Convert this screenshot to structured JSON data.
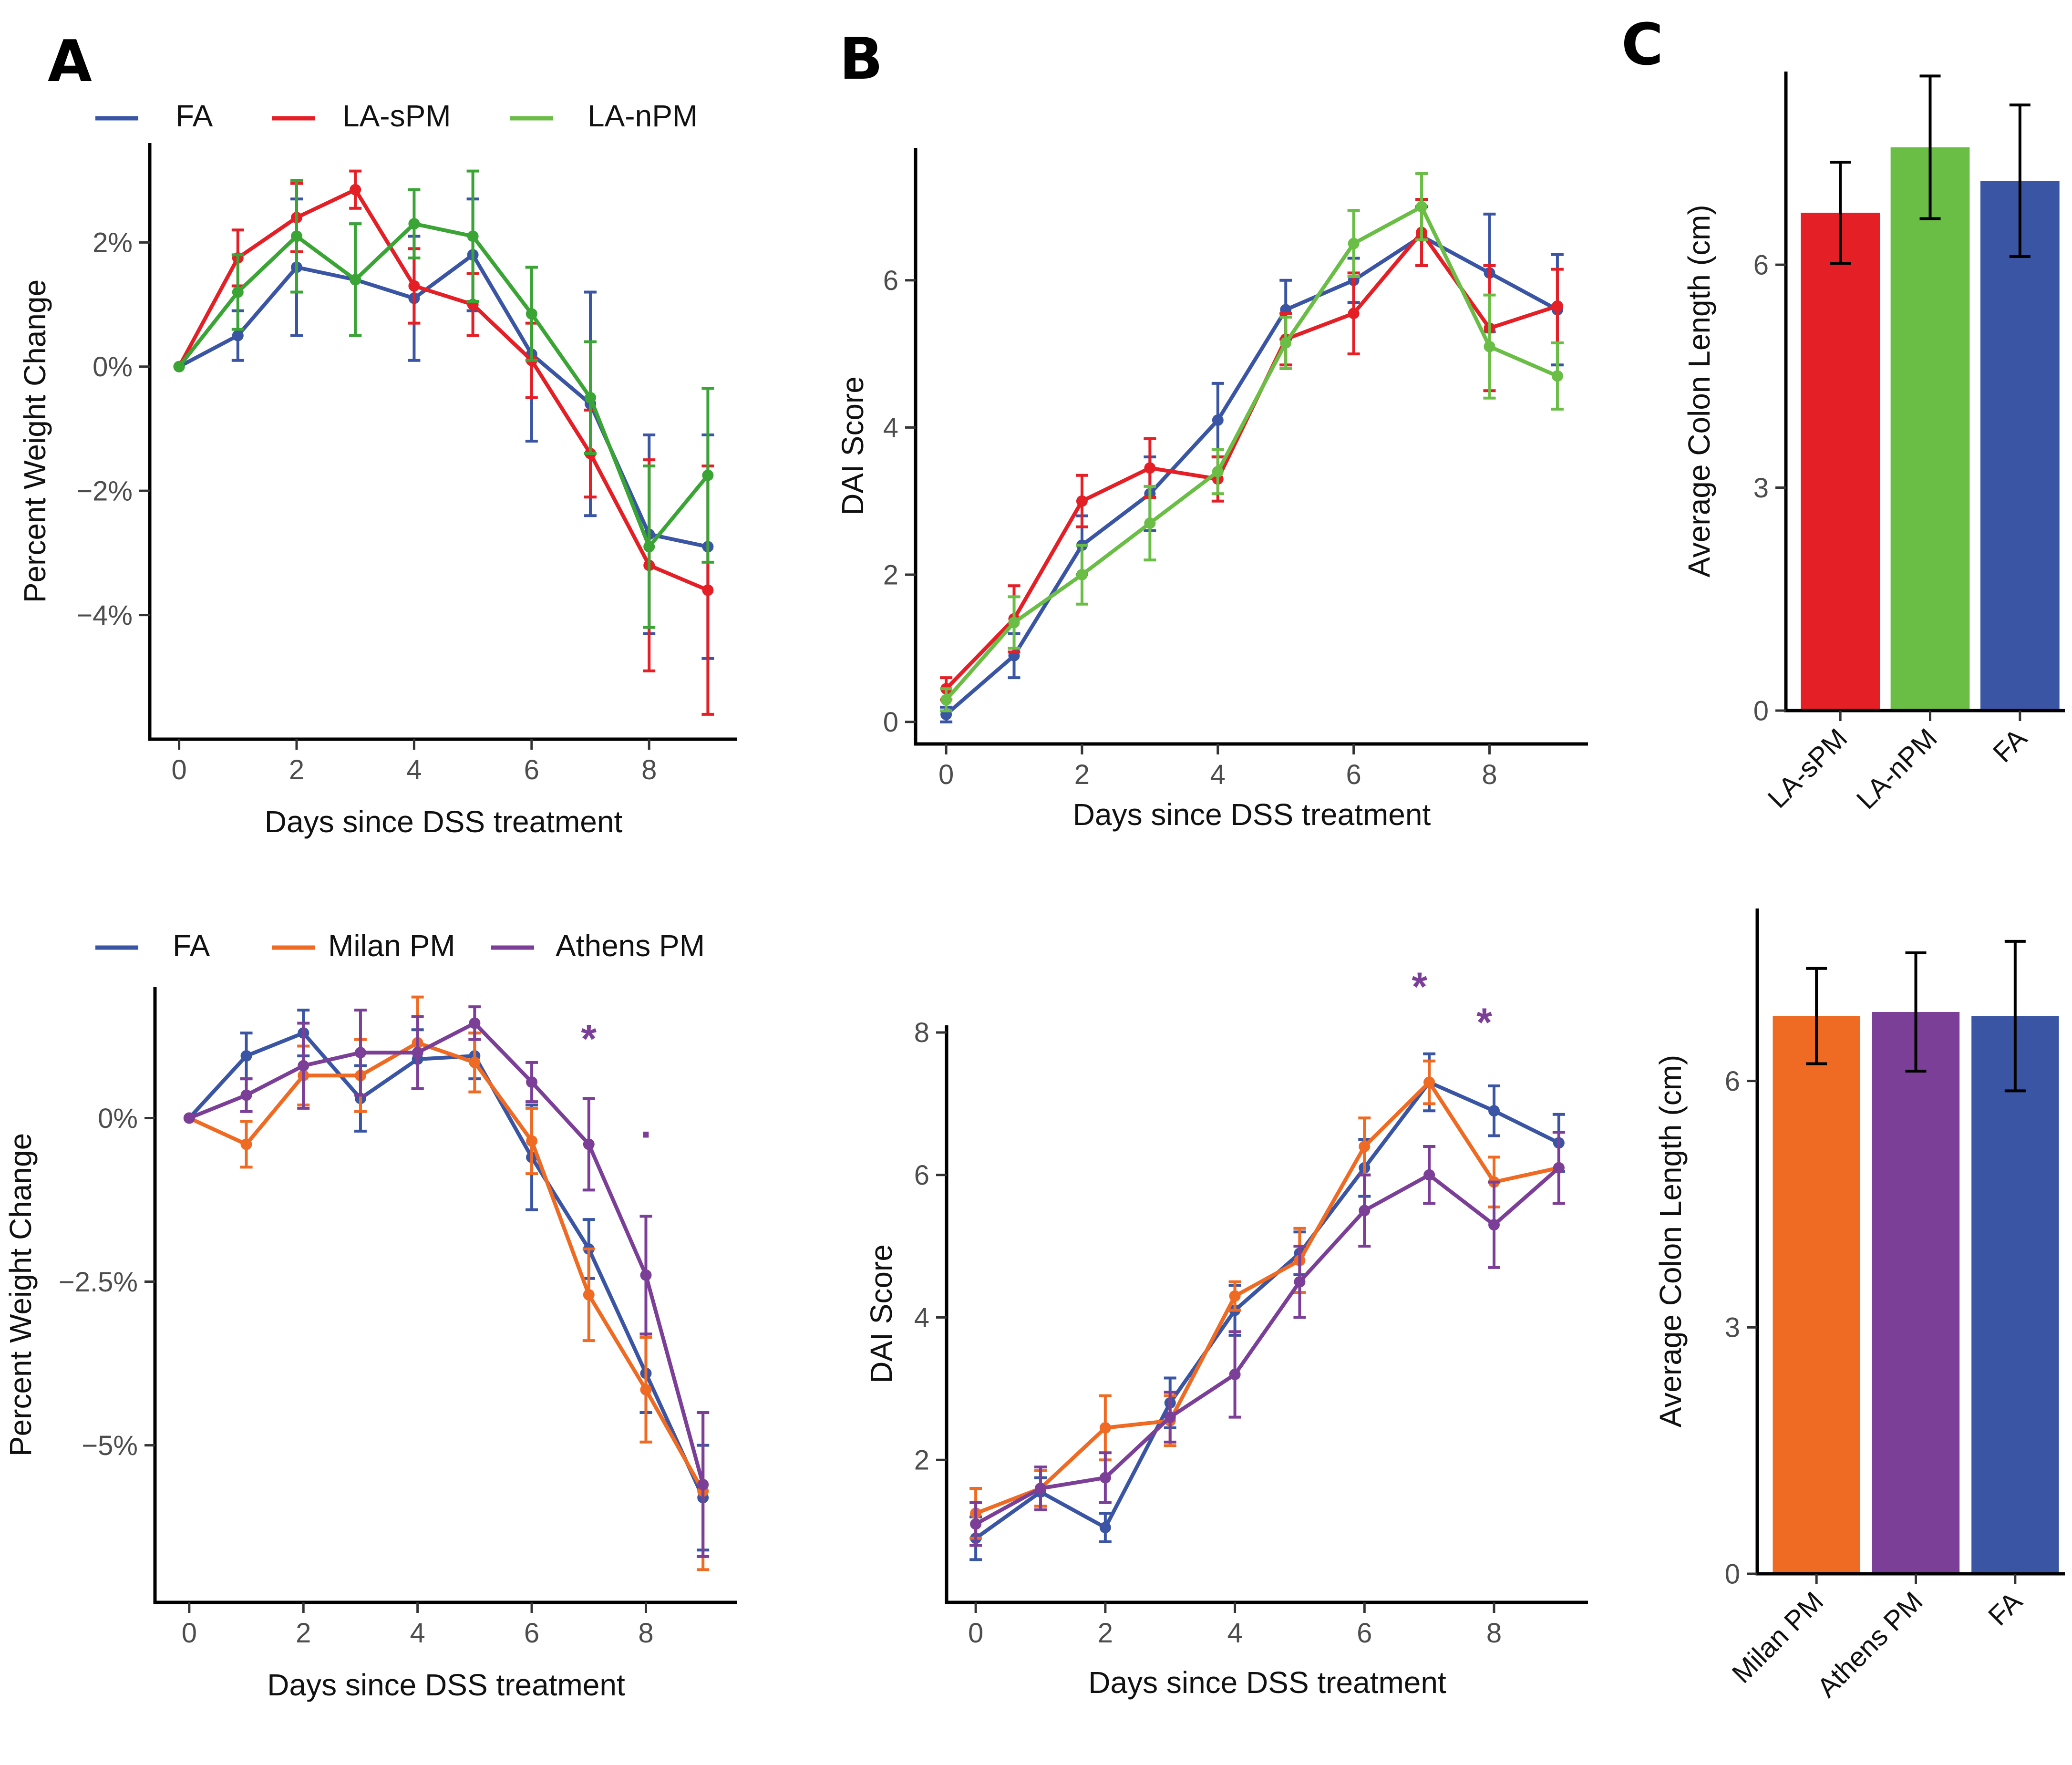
{
  "panel_labels": [
    "A",
    "B",
    "C"
  ],
  "colors": {
    "FA": "#3a55a4",
    "LA-sPM": "#e41f26",
    "LA-nPM": "#6abd45",
    "LA-nPM-weight": "#3aa435",
    "Milan PM": "#ef6a22",
    "Athens PM": "#7b3f98",
    "axis": "#000000",
    "tick_text": "#4d4d4d",
    "text": "#111111"
  },
  "legends": {
    "top": [
      "FA",
      "LA-sPM",
      "LA-nPM"
    ],
    "bottom": [
      "FA",
      "Milan PM",
      "Athens PM"
    ]
  },
  "chart_data": [
    {
      "id": "A-top",
      "type": "line",
      "xlabel": "Days since DSS treatment",
      "ylabel": "Percent Weight Change",
      "xlim": [
        -0.5,
        9.5
      ],
      "ylim": [
        -6.0,
        3.6
      ],
      "xticks": [
        0,
        2,
        4,
        6,
        8
      ],
      "yticks": [
        -4,
        -2,
        0,
        2
      ],
      "ytick_labels": [
        "−4%",
        "−2%",
        "0%",
        "2%"
      ],
      "x": [
        0,
        1,
        2,
        3,
        4,
        5,
        6,
        7,
        8,
        9
      ],
      "series": [
        {
          "name": "FA",
          "color_key": "FA",
          "values": [
            0,
            0.5,
            1.6,
            1.4,
            1.1,
            1.8,
            0.2,
            -0.6,
            -2.7,
            -2.9
          ],
          "errors": [
            0,
            0.4,
            1.1,
            0.9,
            1.0,
            0.9,
            1.4,
            1.8,
            1.6,
            1.8
          ]
        },
        {
          "name": "LA-sPM",
          "color_key": "LA-sPM",
          "values": [
            0,
            1.75,
            2.4,
            2.85,
            1.3,
            1.0,
            0.1,
            -1.4,
            -3.2,
            -3.6
          ],
          "errors": [
            0,
            0.45,
            0.55,
            0.3,
            0.6,
            0.5,
            0.6,
            0.7,
            1.7,
            2.0
          ]
        },
        {
          "name": "LA-nPM",
          "color_key": "LA-nPM-weight",
          "values": [
            0,
            1.2,
            2.1,
            1.4,
            2.3,
            2.1,
            0.85,
            -0.5,
            -2.9,
            -1.75
          ],
          "errors": [
            0,
            0.6,
            0.9,
            0.9,
            0.55,
            1.05,
            0.75,
            0.9,
            1.3,
            1.4
          ]
        }
      ]
    },
    {
      "id": "B-top",
      "type": "line",
      "xlabel": "Days since DSS treatment",
      "ylabel": "DAI Score",
      "xlim": [
        -0.45,
        9.45
      ],
      "ylim": [
        -0.3,
        7.8
      ],
      "xticks": [
        0,
        2,
        4,
        6,
        8
      ],
      "yticks": [
        0,
        2,
        4,
        6
      ],
      "ytick_labels": [
        "0",
        "2",
        "4",
        "6"
      ],
      "x": [
        0,
        1,
        2,
        3,
        4,
        5,
        6,
        7,
        8,
        9
      ],
      "series": [
        {
          "name": "FA",
          "color_key": "FA",
          "values": [
            0.1,
            0.9,
            2.4,
            3.1,
            4.1,
            5.6,
            6.0,
            6.6,
            6.1,
            5.6
          ],
          "errors": [
            0.1,
            0.3,
            0.4,
            0.5,
            0.5,
            0.4,
            0.3,
            0.4,
            0.8,
            0.75
          ]
        },
        {
          "name": "LA-sPM",
          "color_key": "LA-sPM",
          "values": [
            0.45,
            1.4,
            3.0,
            3.45,
            3.3,
            5.2,
            5.55,
            6.65,
            5.35,
            5.65
          ],
          "errors": [
            0.15,
            0.45,
            0.35,
            0.4,
            0.3,
            0.35,
            0.55,
            0.45,
            0.85,
            0.5
          ]
        },
        {
          "name": "LA-nPM",
          "color_key": "LA-nPM",
          "values": [
            0.3,
            1.35,
            2.0,
            2.7,
            3.4,
            5.15,
            6.5,
            7.0,
            5.1,
            4.7
          ],
          "errors": [
            0.15,
            0.35,
            0.4,
            0.5,
            0.3,
            0.35,
            0.45,
            0.45,
            0.7,
            0.45
          ]
        }
      ]
    },
    {
      "id": "C-top",
      "type": "bar",
      "ylabel": "Average Colon Length (cm)",
      "ylim": [
        0,
        8.6
      ],
      "yticks": [
        0,
        3,
        6
      ],
      "ytick_labels": [
        "0",
        "3",
        "6"
      ],
      "categories": [
        "LA-sPM",
        "LA-nPM",
        "FA"
      ],
      "color_keys": [
        "LA-sPM",
        "LA-nPM",
        "FA"
      ],
      "values": [
        6.7,
        7.58,
        7.13
      ],
      "errors": [
        0.68,
        0.96,
        1.02
      ]
    },
    {
      "id": "A-bottom",
      "type": "line",
      "xlabel": "Days since DSS treatment",
      "ylabel": "Percent Weight Change",
      "xlim": [
        -0.6,
        9.6
      ],
      "ylim": [
        -7.4,
        2.0
      ],
      "xticks": [
        0,
        2,
        4,
        6,
        8
      ],
      "yticks": [
        -5,
        -2.5,
        0
      ],
      "ytick_labels": [
        "−5%",
        "−2.5%",
        "0%"
      ],
      "x": [
        0,
        1,
        2,
        3,
        4,
        5,
        6,
        7,
        8,
        9
      ],
      "annotations": [
        {
          "x": 7,
          "y": 1.0,
          "text": "*"
        },
        {
          "x": 8,
          "y": -0.3,
          "text": "."
        }
      ],
      "series": [
        {
          "name": "FA",
          "color_key": "FA",
          "values": [
            0,
            0.95,
            1.3,
            0.3,
            0.9,
            0.95,
            -0.6,
            -2.0,
            -3.9,
            -5.8
          ],
          "errors": [
            0,
            0.35,
            0.35,
            0.5,
            0.45,
            0.35,
            0.8,
            0.45,
            0.6,
            0.8
          ]
        },
        {
          "name": "Milan PM",
          "color_key": "Milan PM",
          "values": [
            0,
            -0.4,
            0.65,
            0.65,
            1.15,
            0.85,
            -0.35,
            -2.7,
            -4.15,
            -5.7
          ],
          "errors": [
            0,
            0.35,
            0.45,
            0.55,
            0.7,
            0.45,
            0.5,
            0.7,
            0.8,
            1.2
          ]
        },
        {
          "name": "Athens PM",
          "color_key": "Athens PM",
          "values": [
            0,
            0.35,
            0.8,
            1.0,
            1.0,
            1.45,
            0.55,
            -0.4,
            -2.4,
            -5.6
          ],
          "errors": [
            0,
            0.25,
            0.65,
            0.65,
            0.55,
            0.25,
            0.3,
            0.7,
            0.9,
            1.1
          ]
        }
      ]
    },
    {
      "id": "B-bottom",
      "type": "line",
      "xlabel": "Days since DSS treatment",
      "ylabel": "DAI Score",
      "xlim": [
        -0.45,
        9.45
      ],
      "ylim": [
        0.0,
        8.1
      ],
      "xticks": [
        0,
        2,
        4,
        6,
        8
      ],
      "yticks": [
        2,
        4,
        6,
        8
      ],
      "ytick_labels": [
        "2",
        "4",
        "6",
        "8"
      ],
      "x": [
        0,
        1,
        2,
        3,
        4,
        5,
        6,
        7,
        8,
        9
      ],
      "annotations": [
        {
          "x": 6.85,
          "y": 8.45,
          "text": "*"
        },
        {
          "x": 7.85,
          "y": 7.95,
          "text": "*"
        }
      ],
      "series": [
        {
          "name": "FA",
          "color_key": "FA",
          "values": [
            0.9,
            1.55,
            1.05,
            2.8,
            4.1,
            4.9,
            6.1,
            7.3,
            6.9,
            6.45
          ],
          "errors": [
            0.3,
            0.2,
            0.2,
            0.35,
            0.35,
            0.3,
            0.4,
            0.4,
            0.35,
            0.4
          ]
        },
        {
          "name": "Milan PM",
          "color_key": "Milan PM",
          "values": [
            1.25,
            1.6,
            2.45,
            2.55,
            4.3,
            4.8,
            6.4,
            7.3,
            5.9,
            6.1
          ],
          "errors": [
            0.35,
            0.25,
            0.45,
            0.35,
            0.2,
            0.45,
            0.4,
            0.3,
            0.35,
            0.5
          ]
        },
        {
          "name": "Athens PM",
          "color_key": "Athens PM",
          "values": [
            1.1,
            1.6,
            1.75,
            2.6,
            3.2,
            4.5,
            5.5,
            6.0,
            5.3,
            6.1
          ],
          "errors": [
            0.3,
            0.3,
            0.35,
            0.35,
            0.6,
            0.5,
            0.5,
            0.4,
            0.6,
            0.5
          ]
        }
      ]
    },
    {
      "id": "C-bottom",
      "type": "bar",
      "ylabel": "Average Colon Length (cm)",
      "ylim": [
        0,
        8.1
      ],
      "yticks": [
        0,
        3,
        6
      ],
      "ytick_labels": [
        "0",
        "3",
        "6"
      ],
      "categories": [
        "Milan PM",
        "Athens PM",
        "FA"
      ],
      "color_keys": [
        "Milan PM",
        "Athens PM",
        "FA"
      ],
      "values": [
        6.79,
        6.84,
        6.79
      ],
      "errors": [
        0.58,
        0.72,
        0.91
      ]
    }
  ]
}
